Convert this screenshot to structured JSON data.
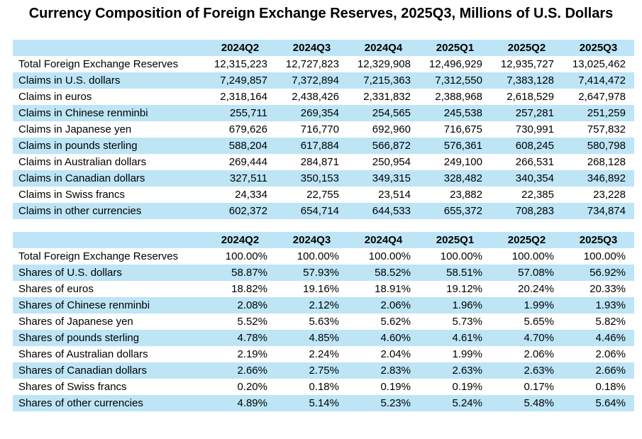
{
  "page_title": "Currency Composition of Foreign Exchange Reserves, 2025Q3, Millions of U.S. Dollars",
  "colors": {
    "highlight_blue": "#BDE5F5",
    "row_white": "#FFFFFF",
    "text": "#000000"
  },
  "chart_data": [
    {
      "type": "table",
      "columns": [
        "2024Q2",
        "2024Q3",
        "2024Q4",
        "2025Q1",
        "2025Q2",
        "2025Q3"
      ],
      "rows": [
        {
          "label": "Total Foreign Exchange Reserves",
          "values": [
            "12,315,223",
            "12,727,823",
            "12,329,908",
            "12,496,929",
            "12,935,727",
            "13,025,462"
          ]
        },
        {
          "label": "Claims in U.S. dollars",
          "values": [
            "7,249,857",
            "7,372,894",
            "7,215,363",
            "7,312,550",
            "7,383,128",
            "7,414,472"
          ]
        },
        {
          "label": "Claims in euros",
          "values": [
            "2,318,164",
            "2,438,426",
            "2,331,832",
            "2,388,968",
            "2,618,529",
            "2,647,978"
          ]
        },
        {
          "label": "Claims in Chinese renminbi",
          "values": [
            "255,711",
            "269,354",
            "254,565",
            "245,538",
            "257,281",
            "251,259"
          ]
        },
        {
          "label": "Claims in Japanese yen",
          "values": [
            "679,626",
            "716,770",
            "692,960",
            "716,675",
            "730,991",
            "757,832"
          ]
        },
        {
          "label": "Claims in pounds sterling",
          "values": [
            "588,204",
            "617,884",
            "566,872",
            "576,361",
            "608,245",
            "580,798"
          ]
        },
        {
          "label": "Claims in Australian dollars",
          "values": [
            "269,444",
            "284,871",
            "250,954",
            "249,100",
            "266,531",
            "268,128"
          ]
        },
        {
          "label": "Claims in Canadian dollars",
          "values": [
            "327,511",
            "350,153",
            "349,315",
            "328,482",
            "340,354",
            "346,892"
          ]
        },
        {
          "label": "Claims in Swiss francs",
          "values": [
            "24,334",
            "22,755",
            "23,514",
            "23,882",
            "22,385",
            "23,228"
          ]
        },
        {
          "label": "Claims in other currencies",
          "values": [
            "602,372",
            "654,714",
            "644,533",
            "655,372",
            "708,283",
            "734,874"
          ]
        }
      ]
    },
    {
      "type": "table",
      "columns": [
        "2024Q2",
        "2024Q3",
        "2024Q4",
        "2025Q1",
        "2025Q2",
        "2025Q3"
      ],
      "rows": [
        {
          "label": "Total Foreign Exchange Reserves",
          "values": [
            "100.00%",
            "100.00%",
            "100.00%",
            "100.00%",
            "100.00%",
            "100.00%"
          ]
        },
        {
          "label": "Shares of U.S. dollars",
          "values": [
            "58.87%",
            "57.93%",
            "58.52%",
            "58.51%",
            "57.08%",
            "56.92%"
          ]
        },
        {
          "label": "Shares of euros",
          "values": [
            "18.82%",
            "19.16%",
            "18.91%",
            "19.12%",
            "20.24%",
            "20.33%"
          ]
        },
        {
          "label": "Shares of Chinese renminbi",
          "values": [
            "2.08%",
            "2.12%",
            "2.06%",
            "1.96%",
            "1.99%",
            "1.93%"
          ]
        },
        {
          "label": "Shares of Japanese yen",
          "values": [
            "5.52%",
            "5.63%",
            "5.62%",
            "5.73%",
            "5.65%",
            "5.82%"
          ]
        },
        {
          "label": "Shares of pounds sterling",
          "values": [
            "4.78%",
            "4.85%",
            "4.60%",
            "4.61%",
            "4.70%",
            "4.46%"
          ]
        },
        {
          "label": "Shares of Australian dollars",
          "values": [
            "2.19%",
            "2.24%",
            "2.04%",
            "1.99%",
            "2.06%",
            "2.06%"
          ]
        },
        {
          "label": "Shares of Canadian dollars",
          "values": [
            "2.66%",
            "2.75%",
            "2.83%",
            "2.63%",
            "2.63%",
            "2.66%"
          ]
        },
        {
          "label": "Shares of Swiss francs",
          "values": [
            "0.20%",
            "0.18%",
            "0.19%",
            "0.19%",
            "0.17%",
            "0.18%"
          ]
        },
        {
          "label": "Shares of other currencies",
          "values": [
            "4.89%",
            "5.14%",
            "5.23%",
            "5.24%",
            "5.48%",
            "5.64%"
          ]
        }
      ]
    }
  ]
}
